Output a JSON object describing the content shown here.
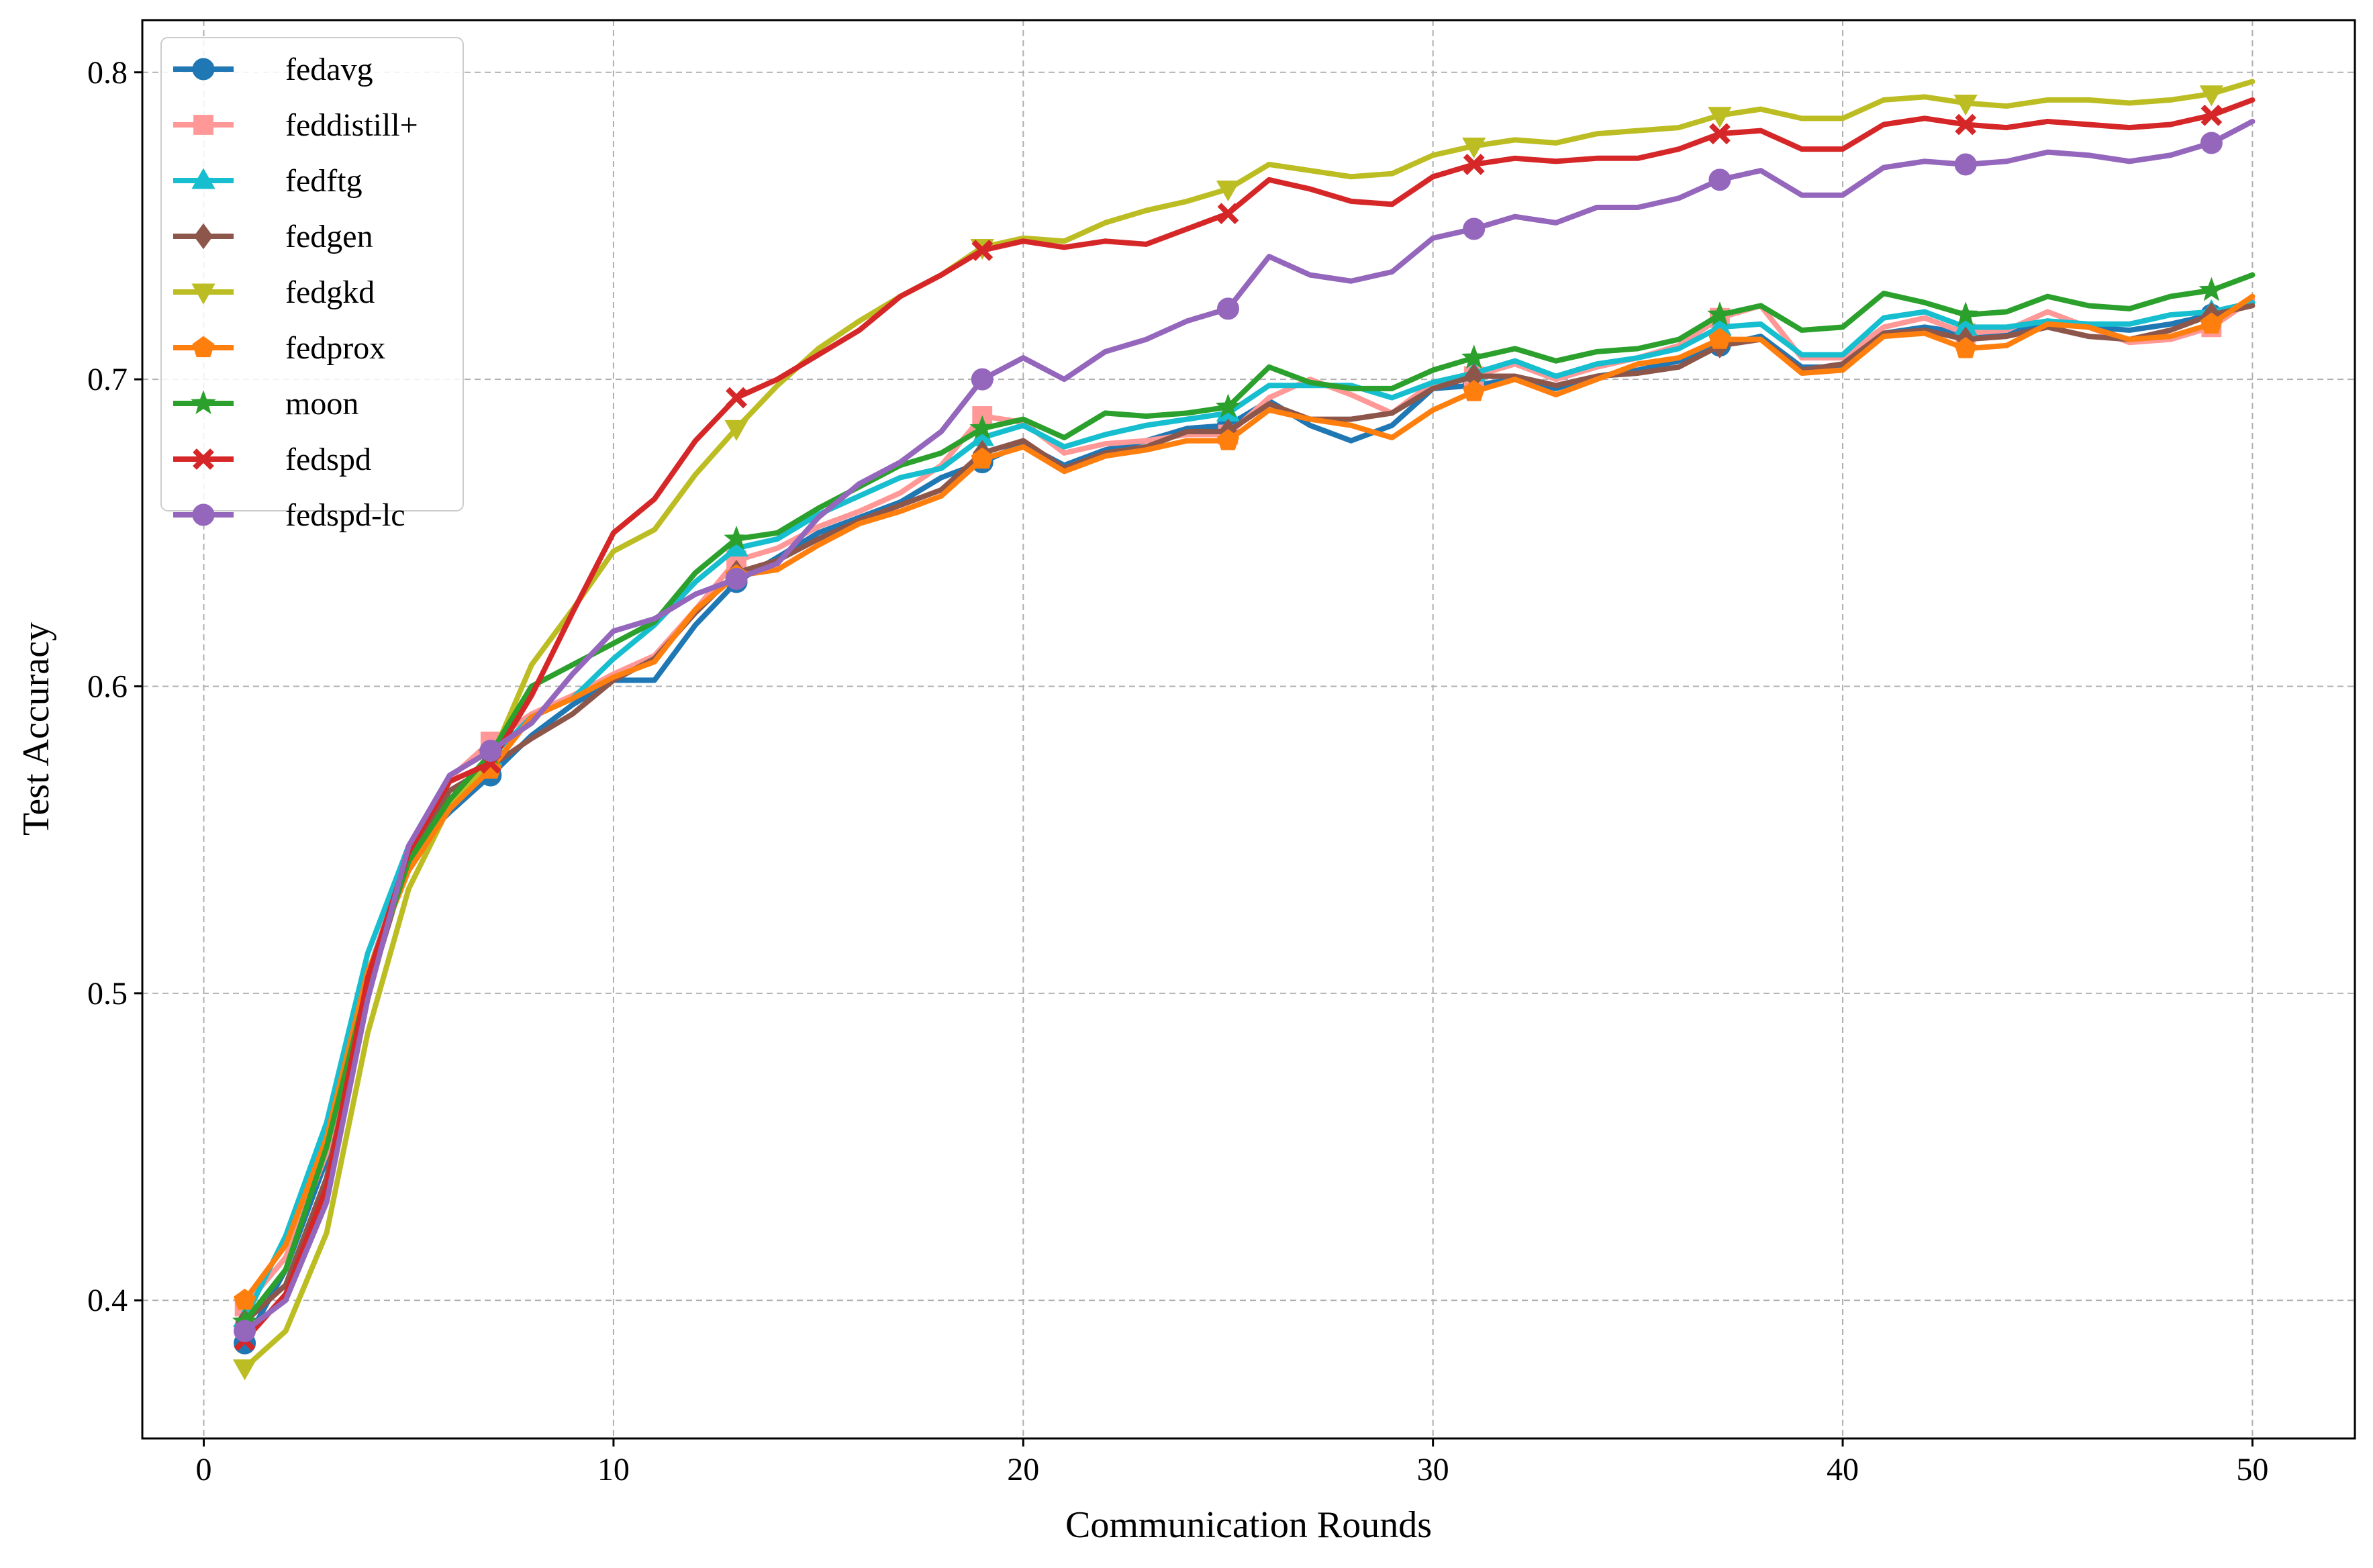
{
  "chart_data": {
    "type": "line",
    "xlabel": "Communication Rounds",
    "ylabel": "Test Accuracy",
    "xlim": [
      -1.5,
      52.5
    ],
    "ylim": [
      0.355,
      0.817
    ],
    "xticks": [
      0,
      10,
      20,
      30,
      40,
      50
    ],
    "xtick_labels": [
      "0",
      "10",
      "20",
      "30",
      "40",
      "50"
    ],
    "yticks": [
      0.4,
      0.5,
      0.6,
      0.7,
      0.8
    ],
    "ytick_labels": [
      "0.4",
      "0.5",
      "0.6",
      "0.7",
      "0.8"
    ],
    "grid": true,
    "legend_position": "top-left",
    "x": [
      1,
      2,
      3,
      4,
      5,
      6,
      7,
      8,
      9,
      10,
      11,
      12,
      13,
      14,
      15,
      16,
      17,
      18,
      19,
      20,
      21,
      22,
      23,
      24,
      25,
      26,
      27,
      28,
      29,
      30,
      31,
      32,
      33,
      34,
      35,
      36,
      37,
      38,
      39,
      40,
      41,
      42,
      43,
      44,
      45,
      46,
      47,
      48,
      49,
      50
    ],
    "marker_every": 6,
    "marker_start": 1,
    "series": [
      {
        "name": "fedavg",
        "color": "#1f77b4",
        "marker": "circle",
        "values": [
          0.386,
          0.41,
          0.446,
          0.506,
          0.546,
          0.559,
          0.571,
          0.584,
          0.594,
          0.602,
          0.602,
          0.62,
          0.634,
          0.642,
          0.65,
          0.655,
          0.66,
          0.668,
          0.673,
          0.679,
          0.672,
          0.677,
          0.68,
          0.684,
          0.685,
          0.693,
          0.685,
          0.68,
          0.685,
          0.697,
          0.698,
          0.7,
          0.697,
          0.701,
          0.703,
          0.706,
          0.711,
          0.714,
          0.704,
          0.704,
          0.715,
          0.717,
          0.715,
          0.715,
          0.719,
          0.717,
          0.716,
          0.718,
          0.721,
          0.725
        ]
      },
      {
        "name": "feddistill+",
        "color": "#ff9896",
        "marker": "square",
        "values": [
          0.398,
          0.414,
          0.448,
          0.505,
          0.548,
          0.57,
          0.582,
          0.591,
          0.597,
          0.604,
          0.61,
          0.625,
          0.641,
          0.645,
          0.652,
          0.657,
          0.663,
          0.672,
          0.688,
          0.686,
          0.676,
          0.679,
          0.68,
          0.682,
          0.682,
          0.694,
          0.7,
          0.695,
          0.689,
          0.699,
          0.701,
          0.705,
          0.7,
          0.704,
          0.707,
          0.711,
          0.72,
          0.724,
          0.707,
          0.707,
          0.717,
          0.72,
          0.715,
          0.716,
          0.722,
          0.717,
          0.712,
          0.713,
          0.717,
          0.726
        ]
      },
      {
        "name": "fedftg",
        "color": "#17becf",
        "marker": "triangle",
        "values": [
          0.394,
          0.421,
          0.458,
          0.513,
          0.548,
          0.563,
          0.577,
          0.59,
          0.596,
          0.609,
          0.62,
          0.634,
          0.645,
          0.648,
          0.656,
          0.662,
          0.668,
          0.671,
          0.681,
          0.685,
          0.678,
          0.682,
          0.685,
          0.687,
          0.689,
          0.698,
          0.698,
          0.698,
          0.694,
          0.699,
          0.702,
          0.706,
          0.701,
          0.705,
          0.707,
          0.71,
          0.717,
          0.718,
          0.708,
          0.708,
          0.72,
          0.722,
          0.717,
          0.717,
          0.719,
          0.718,
          0.718,
          0.721,
          0.722,
          0.725
        ]
      },
      {
        "name": "fedgen",
        "color": "#8c564b",
        "marker": "diamond",
        "values": [
          0.393,
          0.405,
          0.44,
          0.5,
          0.544,
          0.566,
          0.574,
          0.583,
          0.591,
          0.602,
          0.609,
          0.624,
          0.637,
          0.641,
          0.648,
          0.654,
          0.659,
          0.664,
          0.676,
          0.68,
          0.671,
          0.676,
          0.678,
          0.683,
          0.683,
          0.692,
          0.687,
          0.687,
          0.689,
          0.697,
          0.701,
          0.701,
          0.698,
          0.701,
          0.702,
          0.704,
          0.711,
          0.713,
          0.703,
          0.705,
          0.715,
          0.716,
          0.713,
          0.714,
          0.717,
          0.714,
          0.713,
          0.716,
          0.721,
          0.724
        ]
      },
      {
        "name": "fedgkd",
        "color": "#bcbd22",
        "marker": "triangle-down",
        "values": [
          0.378,
          0.39,
          0.422,
          0.487,
          0.534,
          0.561,
          0.576,
          0.607,
          0.625,
          0.644,
          0.651,
          0.669,
          0.684,
          0.698,
          0.71,
          0.719,
          0.727,
          0.734,
          0.743,
          0.746,
          0.745,
          0.751,
          0.755,
          0.758,
          0.762,
          0.77,
          0.768,
          0.766,
          0.767,
          0.773,
          0.776,
          0.778,
          0.777,
          0.78,
          0.781,
          0.782,
          0.786,
          0.788,
          0.785,
          0.785,
          0.791,
          0.792,
          0.79,
          0.789,
          0.791,
          0.791,
          0.79,
          0.791,
          0.793,
          0.797
        ]
      },
      {
        "name": "fedprox",
        "color": "#ff7f0e",
        "marker": "pentagon",
        "values": [
          0.4,
          0.418,
          0.453,
          0.507,
          0.54,
          0.56,
          0.573,
          0.59,
          0.596,
          0.603,
          0.608,
          0.625,
          0.636,
          0.638,
          0.646,
          0.653,
          0.657,
          0.662,
          0.674,
          0.678,
          0.67,
          0.675,
          0.677,
          0.68,
          0.68,
          0.69,
          0.687,
          0.685,
          0.681,
          0.69,
          0.696,
          0.7,
          0.695,
          0.7,
          0.705,
          0.707,
          0.713,
          0.713,
          0.702,
          0.703,
          0.714,
          0.715,
          0.71,
          0.711,
          0.718,
          0.717,
          0.713,
          0.714,
          0.718,
          0.727
        ]
      },
      {
        "name": "moon",
        "color": "#2ca02c",
        "marker": "star",
        "values": [
          0.393,
          0.41,
          0.45,
          0.503,
          0.543,
          0.563,
          0.578,
          0.6,
          0.607,
          0.614,
          0.621,
          0.637,
          0.648,
          0.65,
          0.658,
          0.665,
          0.672,
          0.676,
          0.684,
          0.687,
          0.681,
          0.689,
          0.688,
          0.689,
          0.691,
          0.704,
          0.699,
          0.697,
          0.697,
          0.703,
          0.707,
          0.71,
          0.706,
          0.709,
          0.71,
          0.713,
          0.721,
          0.724,
          0.716,
          0.717,
          0.728,
          0.725,
          0.721,
          0.722,
          0.727,
          0.724,
          0.723,
          0.727,
          0.729,
          0.734
        ]
      },
      {
        "name": "fedspd",
        "color": "#d62728",
        "marker": "x",
        "values": [
          0.387,
          0.402,
          0.437,
          0.505,
          0.546,
          0.569,
          0.575,
          0.597,
          0.624,
          0.65,
          0.661,
          0.68,
          0.694,
          0.7,
          0.708,
          0.716,
          0.727,
          0.734,
          0.742,
          0.745,
          0.743,
          0.745,
          0.744,
          0.749,
          0.754,
          0.765,
          0.762,
          0.758,
          0.757,
          0.766,
          0.77,
          0.772,
          0.771,
          0.772,
          0.772,
          0.775,
          0.78,
          0.781,
          0.775,
          0.775,
          0.783,
          0.785,
          0.783,
          0.782,
          0.784,
          0.783,
          0.782,
          0.783,
          0.786,
          0.791
        ]
      },
      {
        "name": "fedspd-lc",
        "color": "#9467bd",
        "marker": "circle",
        "values": [
          0.39,
          0.4,
          0.432,
          0.498,
          0.548,
          0.571,
          0.579,
          0.588,
          0.604,
          0.618,
          0.622,
          0.63,
          0.635,
          0.64,
          0.655,
          0.666,
          0.673,
          0.683,
          0.7,
          0.707,
          0.7,
          0.709,
          0.713,
          0.719,
          0.723,
          0.74,
          0.734,
          0.732,
          0.735,
          0.746,
          0.749,
          0.753,
          0.751,
          0.756,
          0.756,
          0.759,
          0.765,
          0.768,
          0.76,
          0.76,
          0.769,
          0.771,
          0.77,
          0.771,
          0.774,
          0.773,
          0.771,
          0.773,
          0.777,
          0.784
        ]
      }
    ]
  }
}
